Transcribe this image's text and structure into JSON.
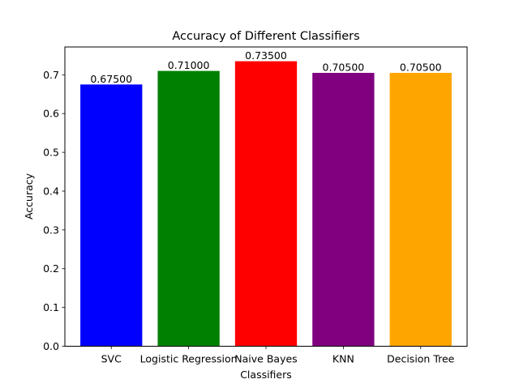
{
  "chart_data": {
    "type": "bar",
    "title": "Accuracy of Different Classifiers",
    "xlabel": "Classifiers",
    "ylabel": "Accuracy",
    "categories": [
      "SVC",
      "Logistic Regression",
      "Naive Bayes",
      "KNN",
      "Decision Tree"
    ],
    "values": [
      0.675,
      0.71,
      0.735,
      0.705,
      0.705
    ],
    "value_labels": [
      "0.67500",
      "0.71000",
      "0.73500",
      "0.70500",
      "0.70500"
    ],
    "colors": [
      "#0000ff",
      "#008000",
      "#ff0000",
      "#800080",
      "#ffa500"
    ],
    "ylim": [
      0,
      0.77175
    ],
    "yticks": [
      0.0,
      0.1,
      0.2,
      0.3,
      0.4,
      0.5,
      0.6,
      0.7
    ],
    "ytick_labels": [
      "0.0",
      "0.1",
      "0.2",
      "0.3",
      "0.4",
      "0.5",
      "0.6",
      "0.7"
    ],
    "grid": false,
    "legend": "none"
  }
}
